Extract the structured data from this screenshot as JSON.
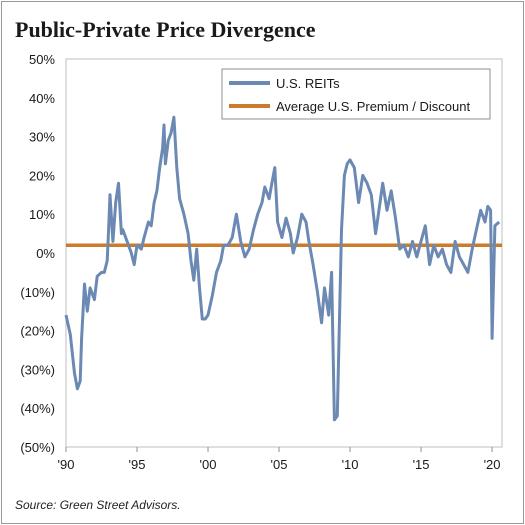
{
  "chart_data": {
    "type": "line",
    "title": "Public-Private Price Divergence",
    "source": "Source: Green Street Advisors.",
    "ylim": [
      -50,
      50
    ],
    "xlim": [
      1990,
      2020.7
    ],
    "y_ticks": [
      50,
      40,
      30,
      20,
      10,
      0,
      -10,
      -20,
      -30,
      -40,
      -50
    ],
    "y_tick_labels": [
      "50%",
      "40%",
      "30%",
      "20%",
      "10%",
      "0%",
      "(10%)",
      "(20%)",
      "(30%)",
      "(40%)",
      "(50%)"
    ],
    "x_ticks": [
      1990,
      1995,
      2000,
      2005,
      2010,
      2015,
      2020
    ],
    "x_tick_labels": [
      "'90",
      "'95",
      "'00",
      "'05",
      "'10",
      "'15",
      "'20"
    ],
    "grid": false,
    "legend_position": "top-right",
    "series": [
      {
        "name": "U.S. REITs",
        "color": "#6b89b3",
        "points": [
          [
            1990.0,
            -16
          ],
          [
            1990.3,
            -21
          ],
          [
            1990.6,
            -31
          ],
          [
            1990.8,
            -35
          ],
          [
            1991.0,
            -33
          ],
          [
            1991.1,
            -22
          ],
          [
            1991.3,
            -8
          ],
          [
            1991.5,
            -15
          ],
          [
            1991.7,
            -9
          ],
          [
            1991.9,
            -11
          ],
          [
            1992.0,
            -12
          ],
          [
            1992.2,
            -6
          ],
          [
            1992.5,
            -5
          ],
          [
            1992.7,
            -5
          ],
          [
            1992.9,
            -2
          ],
          [
            1993.0,
            6
          ],
          [
            1993.1,
            15
          ],
          [
            1993.3,
            3
          ],
          [
            1993.5,
            13
          ],
          [
            1993.7,
            18
          ],
          [
            1993.9,
            5
          ],
          [
            1994.0,
            6
          ],
          [
            1994.3,
            3
          ],
          [
            1994.6,
            0
          ],
          [
            1994.8,
            -3
          ],
          [
            1995.0,
            2
          ],
          [
            1995.3,
            1
          ],
          [
            1995.5,
            4
          ],
          [
            1995.8,
            8
          ],
          [
            1996.0,
            7
          ],
          [
            1996.2,
            13
          ],
          [
            1996.4,
            16
          ],
          [
            1996.6,
            22
          ],
          [
            1996.8,
            27
          ],
          [
            1996.9,
            33
          ],
          [
            1997.0,
            23
          ],
          [
            1997.2,
            29
          ],
          [
            1997.4,
            31
          ],
          [
            1997.6,
            35
          ],
          [
            1997.8,
            22
          ],
          [
            1998.0,
            14
          ],
          [
            1998.3,
            10
          ],
          [
            1998.6,
            5
          ],
          [
            1998.8,
            -2
          ],
          [
            1999.0,
            -7
          ],
          [
            1999.2,
            1
          ],
          [
            1999.4,
            -9
          ],
          [
            1999.6,
            -17
          ],
          [
            1999.8,
            -17
          ],
          [
            2000.0,
            -16
          ],
          [
            2000.3,
            -11
          ],
          [
            2000.6,
            -5
          ],
          [
            2000.9,
            -2
          ],
          [
            2001.1,
            2
          ],
          [
            2001.4,
            2
          ],
          [
            2001.7,
            4
          ],
          [
            2002.0,
            10
          ],
          [
            2002.3,
            3
          ],
          [
            2002.6,
            -1
          ],
          [
            2002.9,
            1
          ],
          [
            2003.2,
            6
          ],
          [
            2003.5,
            10
          ],
          [
            2003.8,
            13
          ],
          [
            2004.0,
            17
          ],
          [
            2004.3,
            14
          ],
          [
            2004.5,
            18
          ],
          [
            2004.7,
            22
          ],
          [
            2004.9,
            8
          ],
          [
            2005.2,
            4
          ],
          [
            2005.5,
            9
          ],
          [
            2005.8,
            5
          ],
          [
            2006.0,
            0
          ],
          [
            2006.3,
            4
          ],
          [
            2006.6,
            10
          ],
          [
            2006.9,
            8
          ],
          [
            2007.1,
            3
          ],
          [
            2007.4,
            -3
          ],
          [
            2007.7,
            -10
          ],
          [
            2008.0,
            -18
          ],
          [
            2008.2,
            -9
          ],
          [
            2008.5,
            -16
          ],
          [
            2008.7,
            -5
          ],
          [
            2008.9,
            -43
          ],
          [
            2009.1,
            -42
          ],
          [
            2009.2,
            -26
          ],
          [
            2009.4,
            6
          ],
          [
            2009.6,
            20
          ],
          [
            2009.8,
            23
          ],
          [
            2010.0,
            24
          ],
          [
            2010.3,
            22
          ],
          [
            2010.6,
            13
          ],
          [
            2010.9,
            20
          ],
          [
            2011.2,
            18
          ],
          [
            2011.5,
            15
          ],
          [
            2011.8,
            5
          ],
          [
            2012.0,
            10
          ],
          [
            2012.3,
            18
          ],
          [
            2012.6,
            11
          ],
          [
            2012.9,
            16
          ],
          [
            2013.2,
            9
          ],
          [
            2013.5,
            1
          ],
          [
            2013.8,
            2
          ],
          [
            2014.1,
            -1
          ],
          [
            2014.4,
            3
          ],
          [
            2014.7,
            -1
          ],
          [
            2015.0,
            3
          ],
          [
            2015.3,
            7
          ],
          [
            2015.6,
            -3
          ],
          [
            2015.9,
            2
          ],
          [
            2016.2,
            -1
          ],
          [
            2016.5,
            1
          ],
          [
            2016.8,
            -3
          ],
          [
            2017.1,
            -5
          ],
          [
            2017.4,
            3
          ],
          [
            2017.7,
            -1
          ],
          [
            2018.0,
            -3
          ],
          [
            2018.3,
            -5
          ],
          [
            2018.6,
            1
          ],
          [
            2018.9,
            6
          ],
          [
            2019.2,
            11
          ],
          [
            2019.5,
            8
          ],
          [
            2019.7,
            12
          ],
          [
            2019.9,
            11
          ],
          [
            2020.0,
            -22
          ],
          [
            2020.2,
            7
          ],
          [
            2020.5,
            8
          ]
        ]
      },
      {
        "name": "Average U.S. Premium / Discount",
        "color": "#cc7a2b",
        "constant": 2
      }
    ]
  }
}
